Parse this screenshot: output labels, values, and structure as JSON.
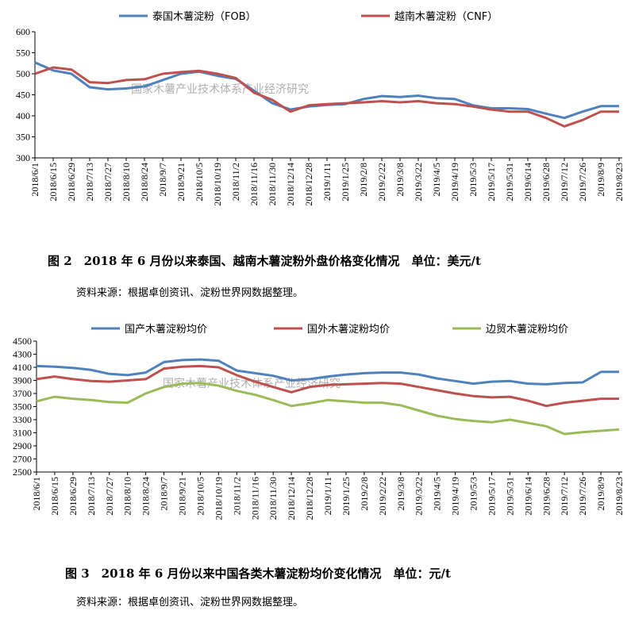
{
  "chart_data": [
    {
      "type": "line",
      "title": "图 2　2018 年 6 月份以来泰国、越南木薯淀粉外盘价格变化情况　单位：美元/t",
      "source": "资料来源：根据卓创资讯、淀粉世界网数据整理。",
      "watermark": "国家木薯产业技术体系产业经济研究",
      "ylim": [
        300,
        600
      ],
      "yticks": [
        300,
        350,
        400,
        450,
        500,
        550,
        600
      ],
      "grid": false,
      "legend": "top",
      "categories": [
        "2018/6/1",
        "2018/6/15",
        "2018/6/29",
        "2018/7/13",
        "2018/7/27",
        "2018/8/10",
        "2018/8/24",
        "2018/9/7",
        "2018/9/21",
        "2018/10/5",
        "2018/10/19",
        "2018/11/2",
        "2018/11/16",
        "2018/11/30",
        "2018/12/14",
        "2018/12/28",
        "2019/1/11",
        "2019/1/25",
        "2019/2/8",
        "2019/2/22",
        "2019/3/8",
        "2019/3/22",
        "2019/4/5",
        "2019/4/19",
        "2019/5/3",
        "2019/5/17",
        "2019/5/31",
        "2019/6/14",
        "2019/6/28",
        "2019/7/12",
        "2019/7/26",
        "2019/8/9",
        "2019/8/23"
      ],
      "series": [
        {
          "name": "泰国木薯淀粉（FOB）",
          "color": "#4f81bd",
          "values": [
            527,
            508,
            500,
            468,
            463,
            465,
            470,
            485,
            500,
            505,
            495,
            488,
            460,
            430,
            415,
            422,
            426,
            428,
            440,
            447,
            445,
            448,
            442,
            440,
            425,
            418,
            418,
            416,
            405,
            395,
            410,
            423,
            423
          ]
        },
        {
          "name": "越南木薯淀粉（CNF）",
          "color": "#c0504d",
          "values": [
            500,
            515,
            510,
            480,
            478,
            485,
            487,
            500,
            504,
            507,
            500,
            490,
            455,
            438,
            410,
            425,
            428,
            430,
            432,
            435,
            432,
            435,
            430,
            428,
            422,
            415,
            410,
            410,
            395,
            375,
            390,
            410,
            410
          ]
        }
      ]
    },
    {
      "type": "line",
      "title": "图 3　2018 年 6 月份以来中国各类木薯淀粉均价变化情况　单位：元/t",
      "source": "资料来源：根据卓创资讯、淀粉世界网数据整理。",
      "watermark": "国家木薯产业技术体系产业经济研究",
      "ylim": [
        2500,
        4500
      ],
      "yticks": [
        2500,
        2700,
        2900,
        3100,
        3300,
        3500,
        3700,
        3900,
        4100,
        4300,
        4500
      ],
      "grid": false,
      "legend": "top",
      "categories": [
        "2018/6/1",
        "2018/6/15",
        "2018/6/29",
        "2018/7/13",
        "2018/7/27",
        "2018/8/10",
        "2018/8/24",
        "2018/9/7",
        "2018/9/21",
        "2018/10/5",
        "2018/10/19",
        "2018/11/2",
        "2018/11/16",
        "2018/11/30",
        "2018/12/14",
        "2018/12/28",
        "2019/1/11",
        "2019/1/25",
        "2019/2/8",
        "2019/2/22",
        "2019/3/8",
        "2019/3/22",
        "2019/4/5",
        "2019/4/19",
        "2019/5/3",
        "2019/5/17",
        "2019/5/31",
        "2019/6/14",
        "2019/6/28",
        "2019/7/12",
        "2019/7/26",
        "2019/8/9",
        "2019/8/23"
      ],
      "series": [
        {
          "name": "国产木薯淀粉均价",
          "color": "#4f81bd",
          "values": [
            4120,
            4110,
            4090,
            4060,
            4000,
            3980,
            4020,
            4180,
            4210,
            4220,
            4200,
            4050,
            4010,
            3970,
            3900,
            3920,
            3960,
            3990,
            4010,
            4020,
            4020,
            3990,
            3930,
            3890,
            3850,
            3880,
            3890,
            3850,
            3840,
            3860,
            3870,
            4030,
            4030
          ]
        },
        {
          "name": "国外木薯淀粉均价",
          "color": "#c0504d",
          "values": [
            3920,
            3960,
            3920,
            3890,
            3880,
            3900,
            3920,
            4080,
            4110,
            4120,
            4100,
            3980,
            3880,
            3800,
            3720,
            3800,
            3830,
            3840,
            3850,
            3860,
            3850,
            3800,
            3750,
            3700,
            3660,
            3640,
            3650,
            3590,
            3510,
            3560,
            3590,
            3620,
            3620
          ]
        },
        {
          "name": "边贸木薯淀粉均价",
          "color": "#9bbb59",
          "values": [
            3580,
            3650,
            3620,
            3600,
            3570,
            3560,
            3700,
            3800,
            3850,
            3860,
            3820,
            3740,
            3680,
            3600,
            3510,
            3550,
            3600,
            3580,
            3560,
            3560,
            3520,
            3440,
            3360,
            3310,
            3280,
            3260,
            3300,
            3250,
            3200,
            3080,
            3110,
            3130,
            3150
          ]
        }
      ]
    }
  ]
}
